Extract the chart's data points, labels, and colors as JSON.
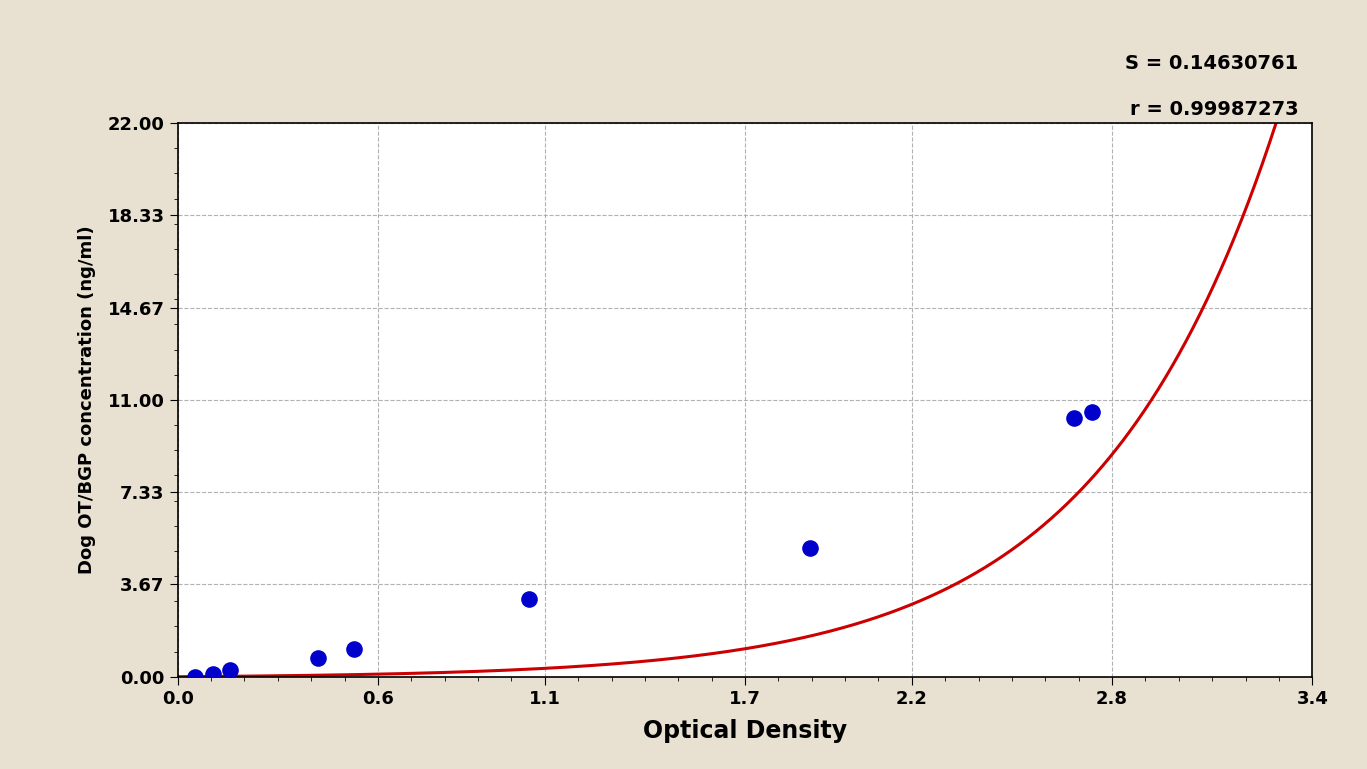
{
  "xlabel": "Optical Density",
  "ylabel": "Dog OT/BGP concentration (ng/ml)",
  "background_color": "#e8e0d0",
  "plot_bg_color": "#ffffff",
  "annotation_S": "S = 0.14630761",
  "annotation_r": "r = 0.99987273",
  "data_x": [
    0.053,
    0.105,
    0.158,
    0.421,
    0.527,
    1.054,
    1.896,
    2.686,
    2.739
  ],
  "data_y": [
    0.0,
    0.12,
    0.27,
    0.73,
    1.1,
    3.1,
    5.1,
    10.27,
    10.5
  ],
  "xlim": [
    0.0,
    3.4
  ],
  "ylim": [
    0.0,
    22.0
  ],
  "xtick_values": [
    0.0,
    0.6,
    1.1,
    1.7,
    2.2,
    2.8,
    3.4
  ],
  "xtick_labels": [
    "0.0",
    "0.6",
    "1.1",
    "1.7",
    "2.2",
    "2.8",
    "3.4"
  ],
  "ytick_values": [
    0.0,
    3.67,
    7.33,
    11.0,
    14.67,
    18.33,
    22.0
  ],
  "ytick_labels": [
    "0.00",
    "3.67",
    "7.33",
    "11.00",
    "14.67",
    "18.33",
    "22.00"
  ],
  "dot_color": "#0000cc",
  "line_color": "#cc0000",
  "dot_size": 120,
  "linewidth": 2.2
}
